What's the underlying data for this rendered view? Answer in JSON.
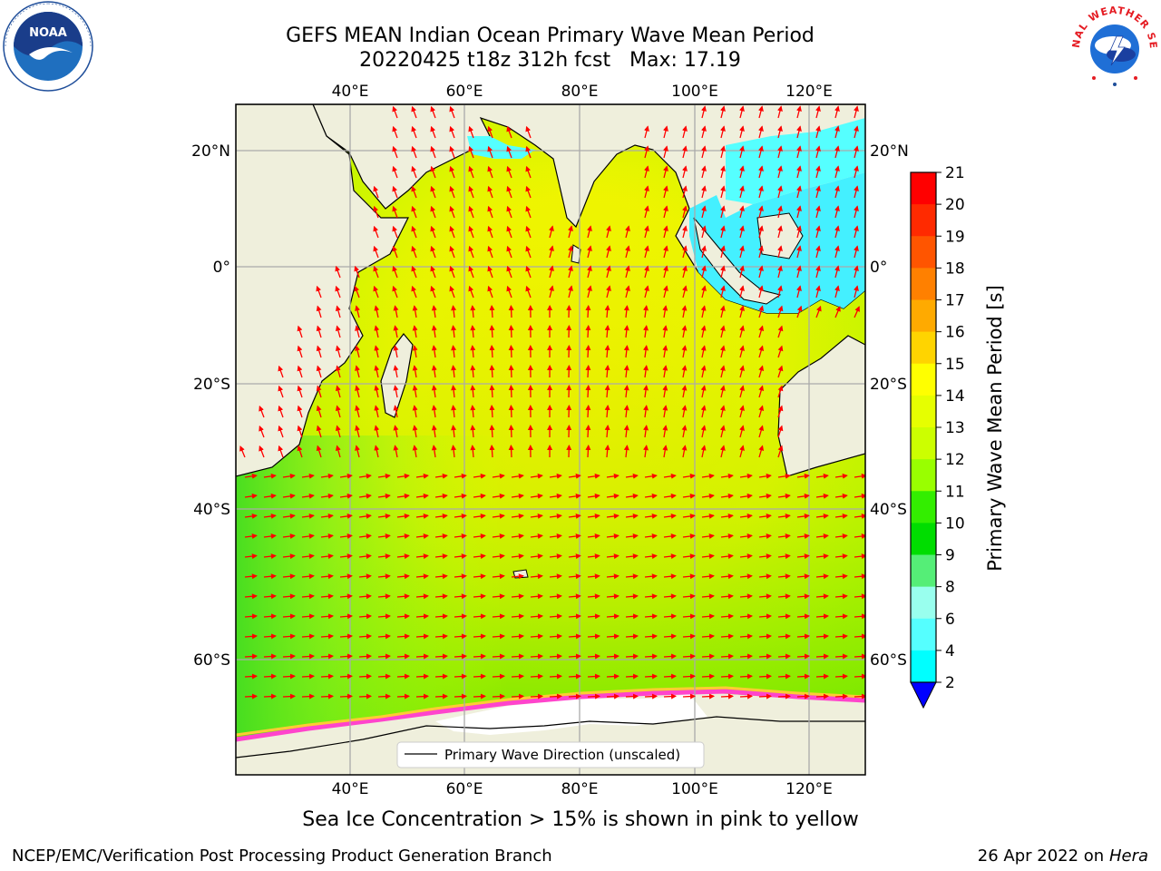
{
  "title": {
    "line1": "GEFS MEAN Indian Ocean Primary Wave Mean Period",
    "line2": "20220425 t18z 312h fcst   Max: 17.19"
  },
  "logos": {
    "left": "noaa-logo",
    "left_text": "NOAA",
    "right": "national-weather-service-logo",
    "right_text": "NATIONAL WEATHER SERVICE"
  },
  "map": {
    "lon_ticks_top": [
      "40°E",
      "60°E",
      "80°E",
      "100°E",
      "120°E"
    ],
    "lon_ticks_bottom": [
      "40°E",
      "60°E",
      "80°E",
      "100°E",
      "120°E"
    ],
    "lat_ticks_left": [
      "20°N",
      "0°",
      "20°S",
      "40°S",
      "60°S"
    ],
    "lat_ticks_right": [
      "20°N",
      "0°",
      "20°S",
      "40°S",
      "60°S"
    ],
    "lon_values": [
      40,
      60,
      80,
      100,
      120
    ],
    "lat_values": [
      20,
      0,
      -20,
      -40,
      -60
    ],
    "extent": {
      "lon_min": 20,
      "lon_max": 130,
      "lat_min": -72,
      "lat_max": 28
    },
    "land_color": "#efefdc",
    "ocean_base_color": "#f5f100",
    "arrow_color": "#ff0000",
    "legend_label": "Primary Wave Direction (unscaled)"
  },
  "colorbar": {
    "label": "Primary Wave Mean Period [s]",
    "ticks": [
      "21",
      "20",
      "19",
      "18",
      "17",
      "16",
      "15",
      "14",
      "13",
      "12",
      "11",
      "10",
      "9",
      "8",
      "6",
      "4",
      "2"
    ],
    "colors": [
      "#ff0000",
      "#ff2a00",
      "#ff5500",
      "#ff8000",
      "#ffaa00",
      "#ffd400",
      "#ffff00",
      "#e6ff00",
      "#ccff00",
      "#99ff00",
      "#33ee00",
      "#00dd00",
      "#55ee77",
      "#99ffee",
      "#55ffff",
      "#00ffff",
      "#0088ff",
      "#0000ff"
    ],
    "extend_color": "#0000ff"
  },
  "caption": "Sea Ice Concentration > 15% is shown in pink to yellow",
  "footer": {
    "left": "NCEP/EMC/Verification Post Processing Product Generation Branch",
    "right_date": "26 Apr 2022 on ",
    "right_machine": "Hera"
  }
}
